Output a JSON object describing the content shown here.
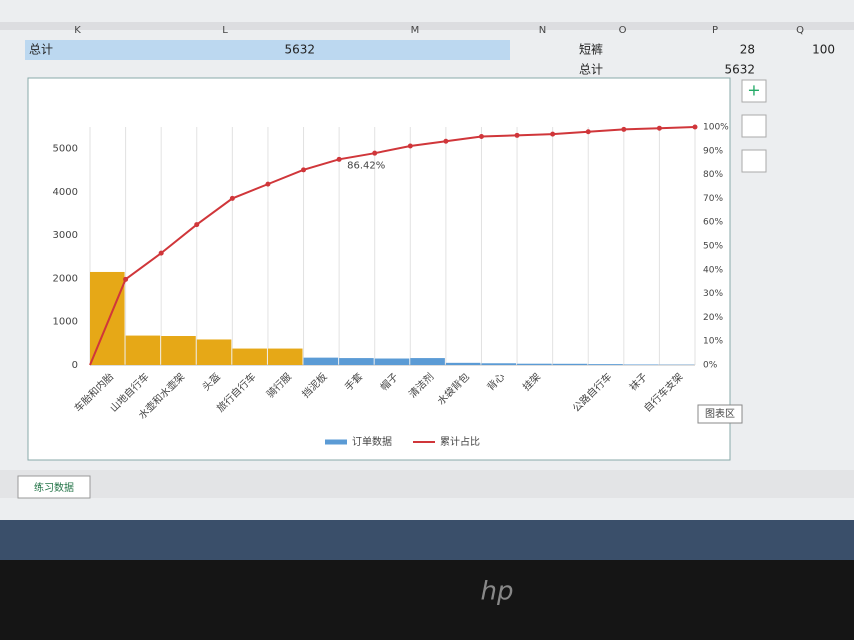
{
  "sheet": {
    "columns": [
      "K",
      "L",
      "M",
      "N",
      "O",
      "P",
      "Q"
    ],
    "rows": [
      [
        "总计",
        "5632",
        "",
        "",
        "短裤",
        "28",
        "100"
      ],
      [
        "",
        "",
        "",
        "",
        "总计",
        "5632",
        ""
      ]
    ],
    "tab": "练习数据",
    "tooltip": "图表区"
  },
  "bezel_logo": "hp",
  "chart_data": {
    "type": "pareto",
    "categories": [
      "车胎和内胎",
      "山地自行车",
      "水壶和水壶架",
      "头盔",
      "旅行自行车",
      "骑行服",
      "挡泥板",
      "手套",
      "帽子",
      "清洁剂",
      "水袋背包",
      "背心",
      "挂架",
      null,
      "公路自行车",
      "袜子",
      "自行车支架"
    ],
    "series": [
      {
        "name": "订单数据",
        "type": "bar",
        "color": "#5b9bd5",
        "colors": [
          "#e6a817",
          "#e6a817",
          "#e6a817",
          "#e6a817",
          "#e6a817",
          "#e6a817",
          "#5b9bd5",
          "#5b9bd5",
          "#5b9bd5",
          "#5b9bd5",
          "#5b9bd5",
          "#5b9bd5",
          "#5b9bd5",
          "#5b9bd5",
          "#5b9bd5",
          "#5b9bd5",
          "#5b9bd5"
        ],
        "values": [
          2150,
          680,
          670,
          590,
          380,
          380,
          170,
          160,
          150,
          160,
          50,
          40,
          30,
          28,
          20,
          12,
          8
        ]
      },
      {
        "name": "累计占比",
        "type": "line",
        "axis": "y2",
        "color": "#d0363a",
        "values": [
          36,
          47,
          59,
          70,
          76,
          82,
          86.42,
          89,
          92,
          94,
          96,
          96.5,
          97,
          98,
          99,
          99.5,
          100
        ],
        "value_labels": [
          null,
          null,
          null,
          null,
          null,
          null,
          "86.42%",
          null,
          null,
          null,
          null,
          null,
          null,
          null,
          null,
          null,
          null
        ]
      }
    ],
    "ylim": [
      0,
      5500
    ],
    "yticks": [
      0,
      1000,
      2000,
      3000,
      4000,
      5000
    ],
    "y2lim": [
      0,
      100
    ],
    "y2ticks": [
      {
        "value": 0,
        "label": "0%"
      },
      {
        "value": 10,
        "label": "10%"
      },
      {
        "value": 20,
        "label": "20%"
      },
      {
        "value": 30,
        "label": "30%"
      },
      {
        "value": 40,
        "label": "40%"
      },
      {
        "value": 50,
        "label": "50%"
      },
      {
        "value": 60,
        "label": "60%"
      },
      {
        "value": 70,
        "label": "70%"
      },
      {
        "value": 80,
        "label": "80%"
      },
      {
        "value": 90,
        "label": "90%"
      },
      {
        "value": 100,
        "label": "100%"
      }
    ],
    "grid": true,
    "legend": "bottom"
  }
}
